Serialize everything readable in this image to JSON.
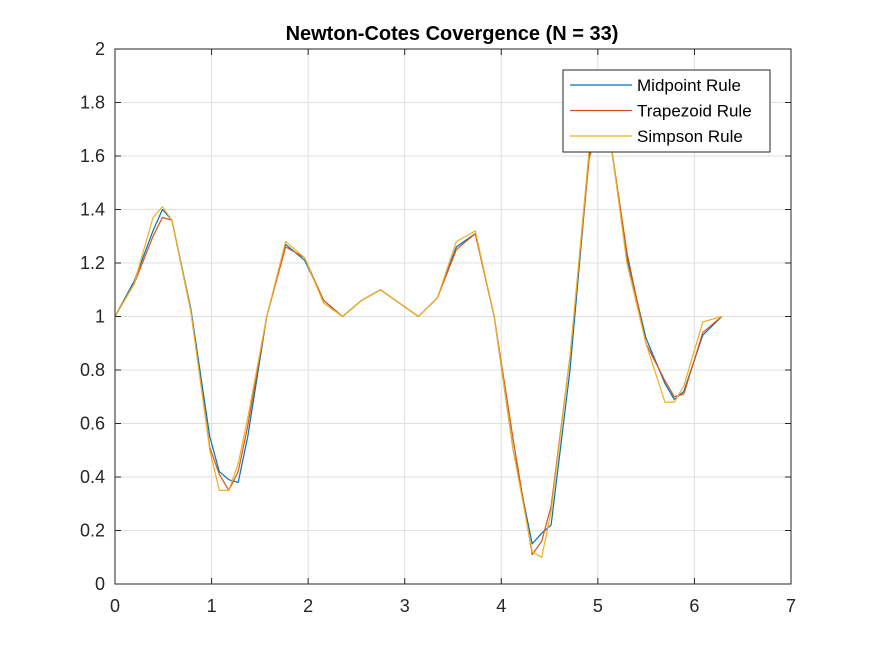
{
  "chart_data": {
    "type": "line",
    "title": "Newton-Cotes Covergence (N = 33)",
    "xlabel": "",
    "ylabel": "",
    "xlim": [
      0,
      7
    ],
    "ylim": [
      0,
      2
    ],
    "xticks": [
      0,
      1,
      2,
      3,
      4,
      5,
      6,
      7
    ],
    "xtick_labels": [
      "0",
      "1",
      "2",
      "3",
      "4",
      "5",
      "6",
      "7"
    ],
    "yticks": [
      0,
      0.2,
      0.4,
      0.6,
      0.8,
      1,
      1.2,
      1.4,
      1.6,
      1.8,
      2
    ],
    "ytick_labels": [
      "0",
      "0.2",
      "0.4",
      "0.6",
      "0.8",
      "1",
      "1.2",
      "1.4",
      "1.6",
      "1.8",
      "2"
    ],
    "grid": true,
    "legend_position": "top-right",
    "series": [
      {
        "name": "Midpoint Rule",
        "color": "#0072BD",
        "x": [
          0,
          0.196,
          0.393,
          0.491,
          0.589,
          0.785,
          0.982,
          1.08,
          1.178,
          1.276,
          1.374,
          1.571,
          1.767,
          1.963,
          2.16,
          2.356,
          2.553,
          2.749,
          2.945,
          3.142,
          3.338,
          3.534,
          3.731,
          3.927,
          4.123,
          4.32,
          4.418,
          4.516,
          4.712,
          4.909,
          5.007,
          5.105,
          5.301,
          5.498,
          5.694,
          5.792,
          5.89,
          6.087,
          6.283
        ],
        "y": [
          1,
          1.13,
          1.32,
          1.4,
          1.36,
          1.03,
          0.55,
          0.42,
          0.39,
          0.38,
          0.55,
          1.0,
          1.27,
          1.21,
          1.06,
          1.0,
          1.06,
          1.1,
          1.05,
          1.0,
          1.07,
          1.26,
          1.31,
          1.0,
          0.5,
          0.15,
          0.19,
          0.22,
          0.8,
          1.6,
          1.72,
          1.72,
          1.22,
          0.92,
          0.75,
          0.69,
          0.72,
          0.93,
          1.0
        ]
      },
      {
        "name": "Trapezoid Rule",
        "color": "#D95319",
        "x": [
          0,
          0.196,
          0.393,
          0.491,
          0.589,
          0.785,
          0.982,
          1.08,
          1.178,
          1.276,
          1.374,
          1.571,
          1.767,
          1.963,
          2.16,
          2.356,
          2.553,
          2.749,
          2.945,
          3.142,
          3.338,
          3.534,
          3.731,
          3.927,
          4.123,
          4.32,
          4.418,
          4.516,
          4.712,
          4.909,
          5.007,
          5.105,
          5.301,
          5.498,
          5.694,
          5.792,
          5.89,
          6.087,
          6.283
        ],
        "y": [
          1,
          1.12,
          1.3,
          1.37,
          1.36,
          1.02,
          0.51,
          0.41,
          0.35,
          0.42,
          0.59,
          1.0,
          1.26,
          1.22,
          1.06,
          1.0,
          1.06,
          1.1,
          1.05,
          1.0,
          1.07,
          1.25,
          1.31,
          1.0,
          0.54,
          0.11,
          0.16,
          0.29,
          0.85,
          1.59,
          1.72,
          1.72,
          1.24,
          0.9,
          0.76,
          0.7,
          0.71,
          0.94,
          1.0
        ]
      },
      {
        "name": "Simpson Rule",
        "color": "#EDB120",
        "x": [
          0,
          0.196,
          0.393,
          0.491,
          0.589,
          0.785,
          0.982,
          1.08,
          1.178,
          1.276,
          1.374,
          1.571,
          1.767,
          1.963,
          2.16,
          2.356,
          2.553,
          2.749,
          2.945,
          3.142,
          3.338,
          3.534,
          3.731,
          3.927,
          4.123,
          4.32,
          4.418,
          4.516,
          4.712,
          4.909,
          5.007,
          5.105,
          5.301,
          5.498,
          5.694,
          5.792,
          5.89,
          6.087,
          6.283
        ],
        "y": [
          1,
          1.12,
          1.37,
          1.41,
          1.36,
          1.02,
          0.5,
          0.35,
          0.35,
          0.45,
          0.62,
          1.0,
          1.28,
          1.22,
          1.05,
          1.0,
          1.06,
          1.1,
          1.05,
          1.0,
          1.07,
          1.28,
          1.32,
          1.0,
          0.5,
          0.12,
          0.1,
          0.27,
          0.85,
          1.62,
          1.73,
          1.73,
          1.2,
          0.9,
          0.68,
          0.68,
          0.74,
          0.98,
          1.0
        ]
      }
    ]
  }
}
